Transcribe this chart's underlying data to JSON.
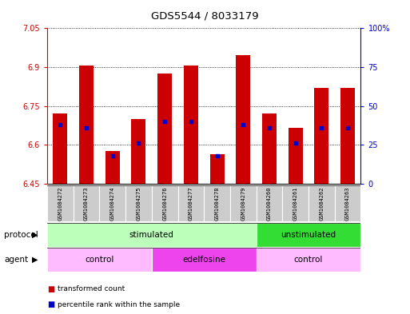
{
  "title": "GDS5544 / 8033179",
  "samples": [
    "GSM1084272",
    "GSM1084273",
    "GSM1084274",
    "GSM1084275",
    "GSM1084276",
    "GSM1084277",
    "GSM1084278",
    "GSM1084279",
    "GSM1084260",
    "GSM1084261",
    "GSM1084262",
    "GSM1084263"
  ],
  "transformed_count": [
    6.72,
    6.905,
    6.575,
    6.7,
    6.875,
    6.905,
    6.565,
    6.945,
    6.72,
    6.665,
    6.82,
    6.82
  ],
  "percentile_rank": [
    38,
    36,
    18,
    26,
    40,
    40,
    18,
    38,
    36,
    26,
    36,
    36
  ],
  "ylim_left": [
    6.45,
    7.05
  ],
  "ylim_right": [
    0,
    100
  ],
  "yticks_left": [
    6.45,
    6.6,
    6.75,
    6.9,
    7.05
  ],
  "yticks_right": [
    0,
    25,
    50,
    75,
    100
  ],
  "ytick_labels_left": [
    "6.45",
    "6.6",
    "6.75",
    "6.9",
    "7.05"
  ],
  "ytick_labels_right": [
    "0",
    "25",
    "50",
    "75",
    "100%"
  ],
  "bar_color": "#cc0000",
  "dot_color": "#0000cc",
  "bar_width": 0.55,
  "protocol_groups": [
    {
      "label": "stimulated",
      "start": 0,
      "end": 8,
      "color": "#bbffbb"
    },
    {
      "label": "unstimulated",
      "start": 8,
      "end": 12,
      "color": "#33dd33"
    }
  ],
  "agent_groups": [
    {
      "label": "control",
      "start": 0,
      "end": 4,
      "color": "#ffbbff"
    },
    {
      "label": "edelfosine",
      "start": 4,
      "end": 8,
      "color": "#ee44ee"
    },
    {
      "label": "control",
      "start": 8,
      "end": 12,
      "color": "#ffbbff"
    }
  ],
  "protocol_label": "protocol",
  "agent_label": "agent",
  "legend_red_label": "transformed count",
  "legend_blue_label": "percentile rank within the sample",
  "grid_color": "black",
  "bg_color": "#ffffff",
  "plot_bg_color": "#ffffff",
  "left_axis_color": "#cc0000",
  "right_axis_color": "#0000cc"
}
